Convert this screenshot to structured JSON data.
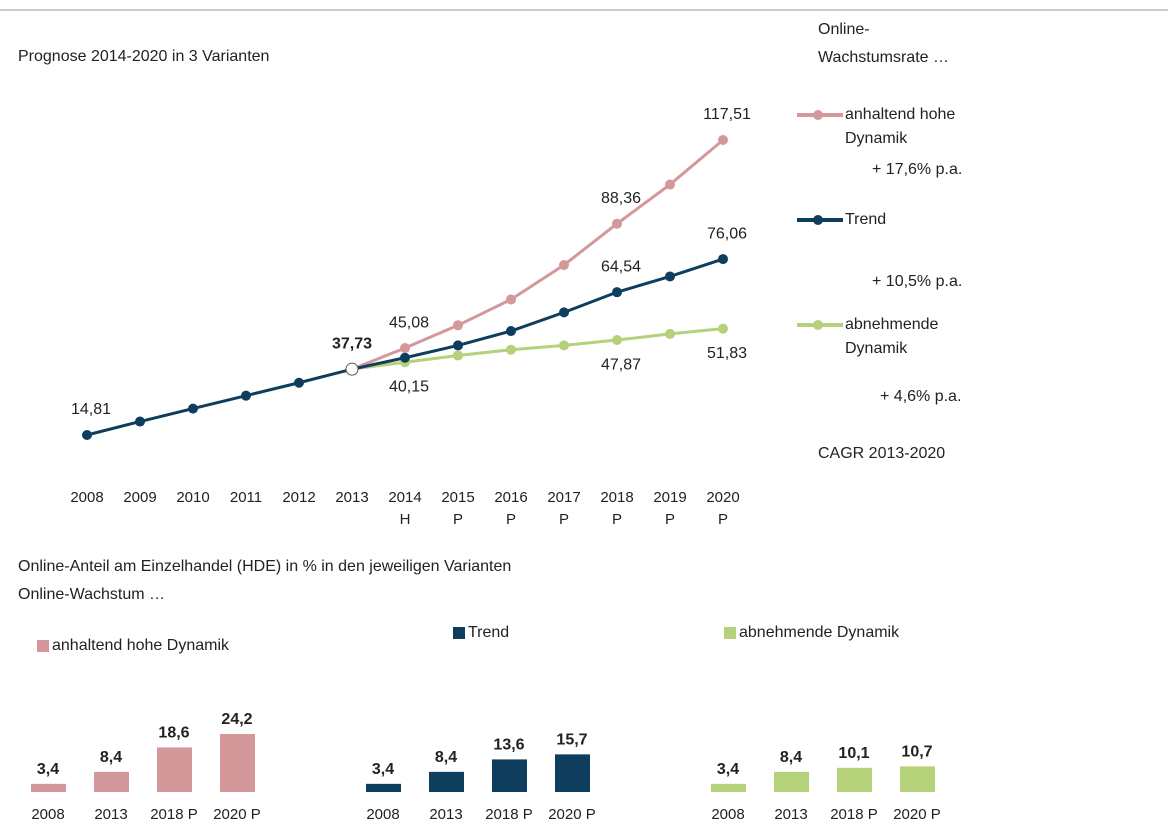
{
  "chart_data": [
    {
      "type": "line",
      "title": "Prognose 2014-2020 in 3 Varianten",
      "legend_title": [
        "Online-",
        "Wachstumsrate …"
      ],
      "legend_note": "CAGR 2013-2020",
      "categories": [
        "2008",
        "2009",
        "2010",
        "2011",
        "2012",
        "2013",
        "2014",
        "2015",
        "2016",
        "2017",
        "2018",
        "2019",
        "2020"
      ],
      "sublabels": [
        null,
        null,
        null,
        null,
        null,
        null,
        "H",
        "P",
        "P",
        "P",
        "P",
        "P",
        "P"
      ],
      "highlight_index": 5,
      "series": [
        {
          "name": "anhaltend hohe Dynamik",
          "note": "+ 17,6% p.a.",
          "color": "#d4979a",
          "label_position": "above",
          "values": [
            null,
            null,
            null,
            null,
            null,
            37.73,
            45.08,
            53,
            62,
            74,
            88.36,
            102,
            117.51
          ],
          "value_labels": [
            null,
            null,
            null,
            null,
            null,
            null,
            "45,08",
            null,
            null,
            null,
            "88,36",
            null,
            "117,51"
          ]
        },
        {
          "name": "abnehmende Dynamik",
          "note": "+ 4,6% p.a.",
          "color": "#b5d27a",
          "label_position": "below",
          "values": [
            null,
            null,
            null,
            null,
            null,
            37.73,
            40.15,
            42.5,
            44.5,
            46,
            47.87,
            50,
            51.83
          ],
          "value_labels": [
            null,
            null,
            null,
            null,
            null,
            null,
            "40,15",
            null,
            null,
            null,
            "47,87",
            null,
            "51,83"
          ]
        },
        {
          "name": "Trend",
          "note": "+ 10,5% p.a.",
          "color": "#0e3d5e",
          "label_position": "above",
          "values": [
            14.81,
            19.5,
            24,
            28.5,
            33,
            37.73,
            41.7,
            46,
            51,
            57.5,
            64.54,
            70,
            76.06
          ],
          "value_labels": [
            "14,81",
            null,
            null,
            null,
            null,
            "37,73",
            null,
            null,
            null,
            null,
            "64,54",
            null,
            "76,06"
          ]
        }
      ]
    },
    {
      "type": "bar",
      "categories": [
        "2008",
        "2013",
        "2018 P",
        "2020 P"
      ],
      "series": [
        {
          "name": "anhaltend hohe Dynamik",
          "color": "#d4979a",
          "values": [
            3.4,
            8.4,
            18.6,
            24.2
          ],
          "value_labels": [
            "3,4",
            "8,4",
            "18,6",
            "24,2"
          ]
        }
      ]
    },
    {
      "type": "bar",
      "categories": [
        "2008",
        "2013",
        "2018 P",
        "2020 P"
      ],
      "series": [
        {
          "name": "Trend",
          "color": "#0e3d5e",
          "values": [
            3.4,
            8.4,
            13.6,
            15.7
          ],
          "value_labels": [
            "3,4",
            "8,4",
            "13,6",
            "15,7"
          ]
        }
      ]
    },
    {
      "type": "bar",
      "categories": [
        "2008",
        "2013",
        "2018 P",
        "2020 P"
      ],
      "series": [
        {
          "name": "abnehmende Dynamik",
          "color": "#b5d27a",
          "values": [
            3.4,
            8.4,
            10.1,
            10.7
          ],
          "value_labels": [
            "3,4",
            "8,4",
            "10,1",
            "10,7"
          ]
        }
      ]
    }
  ],
  "bottom_title": "Online-Anteil am Einzelhandel (HDE) in % in den jeweiligen Varianten",
  "bottom_subtitle": "Online-Wachstum …"
}
